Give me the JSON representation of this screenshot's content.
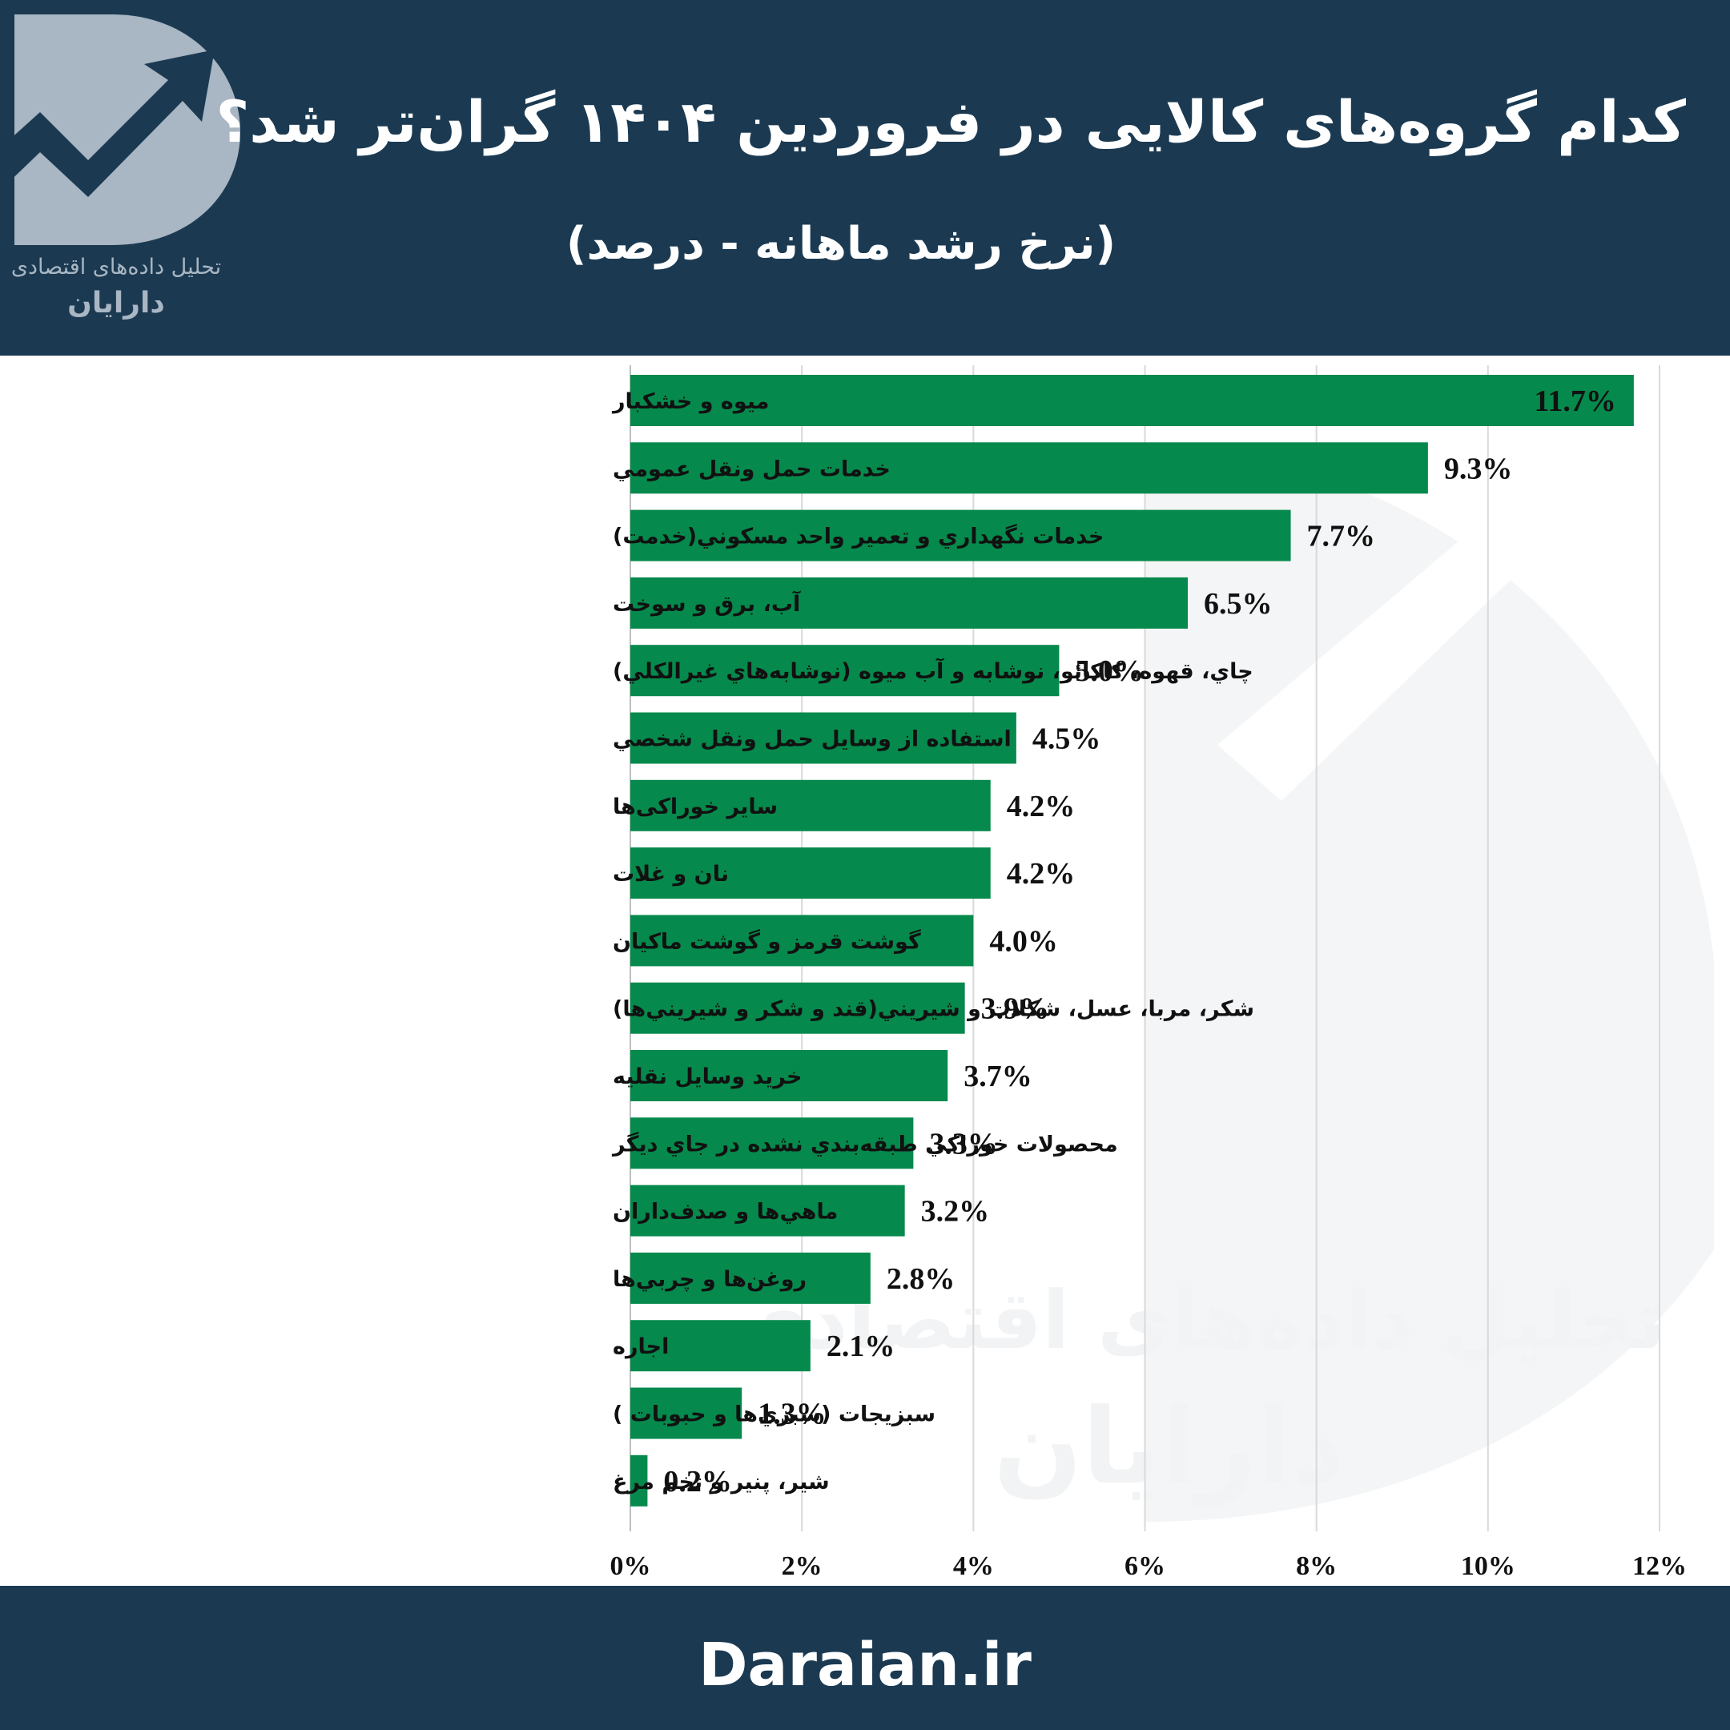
{
  "header": {
    "title": "کدام گروه‌های کالایی در فروردین ۱۴۰۴ گران‌تر شد؟",
    "subtitle": "(نرخ رشد ماهانه - درصد)"
  },
  "logo": {
    "icon": "trend-arrow-logo-icon",
    "line1": "تحلیل داده‌های اقتصادی",
    "line2": "دارایان"
  },
  "watermark": {
    "line1": "تحلیل داده‌های اقتصادی",
    "line2": "دارایان"
  },
  "footer": {
    "site": "Daraian.ir"
  },
  "colors": {
    "header_bg": "#1b3a52",
    "bar": "#06894c",
    "logo": "#a9b6c3"
  },
  "chart_data": {
    "type": "bar",
    "orientation": "horizontal",
    "categories": [
      "ميوه و خشكبار",
      "خدمات حمل ونقل عمومي",
      "خدمات نگهداري و تعمير واحد مسكوني(خدمت)",
      "آب، برق و سوخت",
      "چاي، قهوه، كاكائو، نوشابه و آب ميوه (نوشابه‌هاي غيرالكلي)",
      "استفاده از وسايل حمل ونقل شخصي",
      "سایر خوراکی‌ها",
      "نان و غلات",
      "گوشت قرمز و گوشت ماكيان",
      "شكر، مربا، عسل، شكلات و شيريني(قند و شكر و شيريني‌ها)",
      "خريد وسايل نقليه",
      "محصولات خوراكي طبقه‌بندي نشده در جاي ديگر",
      "ماهي‌ها و صدف‌داران",
      "روغن‌ها و چربي‌ها",
      "اجاره",
      "سبزيجات (سبزي‌ها و حبوبات )",
      "شير، پنير و تخم مرغ"
    ],
    "values": [
      11.7,
      9.3,
      7.7,
      6.5,
      5.0,
      4.5,
      4.2,
      4.2,
      4.0,
      3.9,
      3.7,
      3.3,
      3.2,
      2.8,
      2.1,
      1.3,
      0.2
    ],
    "value_labels": [
      "11.7%",
      "9.3%",
      "7.7%",
      "6.5%",
      "5.0%",
      "4.5%",
      "4.2%",
      "4.2%",
      "4.0%",
      "3.9%",
      "3.7%",
      "3.3%",
      "3.2%",
      "2.8%",
      "2.1%",
      "1.3%",
      "0.2%"
    ],
    "x_ticks": [
      0,
      2,
      4,
      6,
      8,
      10,
      12
    ],
    "x_tick_labels": [
      "0%",
      "2%",
      "4%",
      "6%",
      "8%",
      "10%",
      "12%"
    ],
    "xlim": [
      0,
      12
    ],
    "grid": true,
    "legend": "none"
  }
}
